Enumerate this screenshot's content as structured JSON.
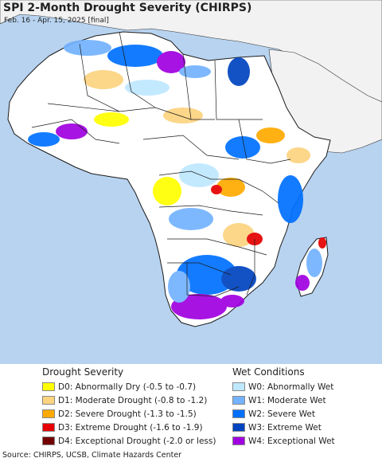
{
  "title": "SPI 2-Month Drought Severity (CHIRPS)",
  "subtitle": "Feb. 16 - Apr. 15, 2025 [final]",
  "colors": {
    "ocean": "#b8d3f0",
    "land_outside": "#f2f2f2",
    "land_neutral": "#ffffff",
    "border": "#1a1a1a"
  },
  "legend": {
    "drought_heading": "Drought Severity",
    "drought": [
      {
        "label": "D0: Abnormally Dry (-0.5 to -0.7)",
        "color": "#ffff00"
      },
      {
        "label": "D1: Moderate Drought (-0.8 to -1.2)",
        "color": "#fcd37f"
      },
      {
        "label": "D2: Severe Drought (-1.3 to -1.5)",
        "color": "#ffaa00"
      },
      {
        "label": "D3: Extreme Drought (-1.6 to -1.9)",
        "color": "#e60000"
      },
      {
        "label": "D4: Exceptional Drought (-2.0 or less)",
        "color": "#730000"
      }
    ],
    "wet_heading": "Wet Conditions",
    "wet": [
      {
        "label": "W0: Abnormally Wet",
        "color": "#bee8ff"
      },
      {
        "label": "W1: Moderate Wet",
        "color": "#73b2ff"
      },
      {
        "label": "W2: Severe Wet",
        "color": "#0070ff"
      },
      {
        "label": "W3: Extreme Wet",
        "color": "#0044c0"
      },
      {
        "label": "W4: Exceptional Wet",
        "color": "#a000e0"
      }
    ]
  },
  "source": "Source: CHIRPS, UCSB, Climate Hazards Center"
}
